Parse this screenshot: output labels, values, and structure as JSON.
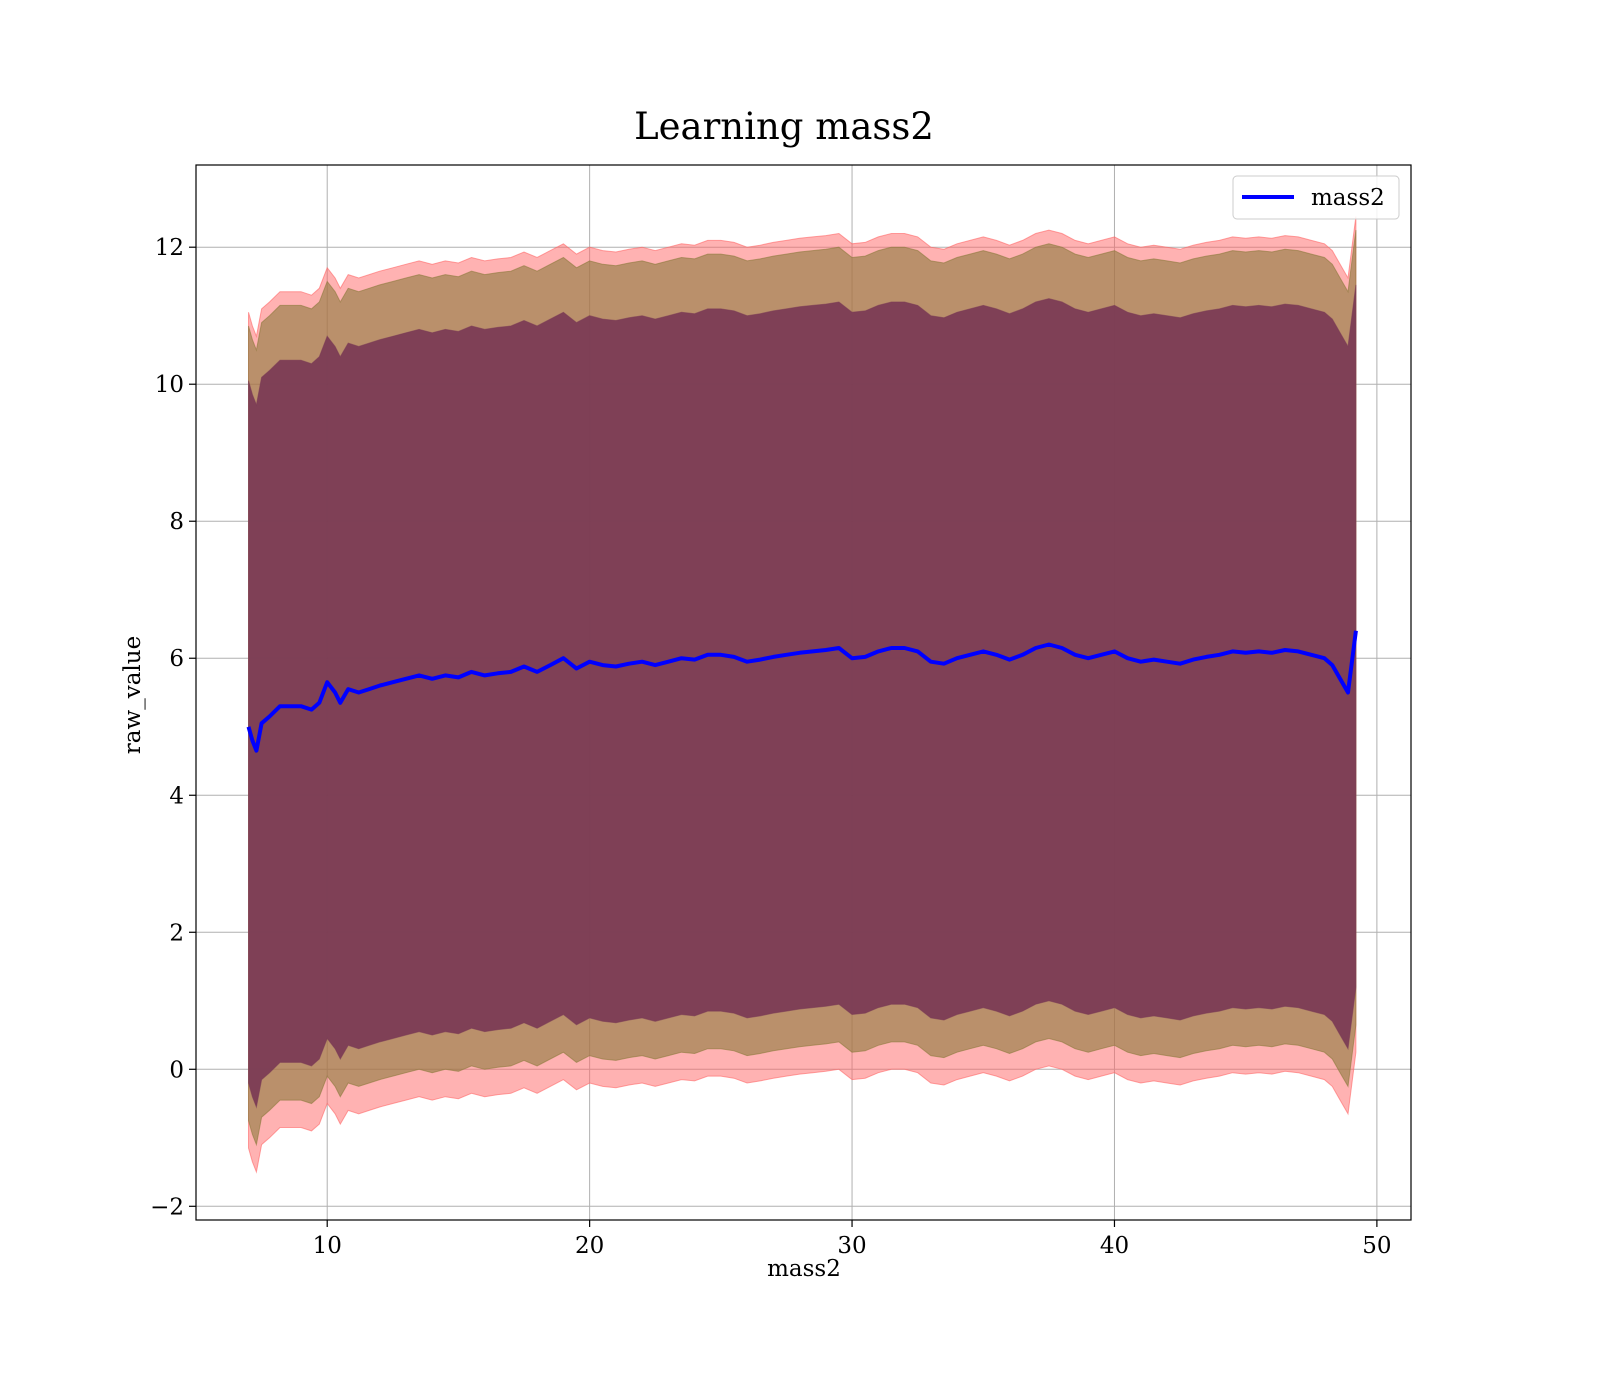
{
  "chart_data": {
    "type": "line",
    "title": "Learning mass2",
    "xlabel": "mass2",
    "ylabel": "raw_value",
    "xlim": [
      5,
      51.3
    ],
    "ylim": [
      -2.2,
      13.2
    ],
    "xticks": [
      10,
      20,
      30,
      40,
      50
    ],
    "yticks": [
      -2,
      0,
      2,
      4,
      6,
      8,
      10,
      12
    ],
    "xtick_labels": [
      "10",
      "20",
      "30",
      "40",
      "50"
    ],
    "ytick_labels": [
      "−2",
      "0",
      "2",
      "4",
      "6",
      "8",
      "10",
      "12"
    ],
    "grid": true,
    "legend": {
      "position": "top-right",
      "entries": [
        "mass2"
      ]
    },
    "colors": {
      "line": "#0000ff",
      "band_outer": "#ff6666",
      "band_middle": "#8c7a3c",
      "band_inner": "#7a3a55",
      "grid": "#b0b0b0"
    },
    "series": [
      {
        "name": "mass2",
        "x": [
          7.0,
          7.15,
          7.3,
          7.5,
          7.8,
          8.2,
          8.6,
          9.0,
          9.4,
          9.7,
          10.0,
          10.3,
          10.5,
          10.8,
          11.2,
          11.6,
          12.0,
          12.5,
          13.0,
          13.5,
          14.0,
          14.5,
          15.0,
          15.5,
          16.0,
          16.5,
          17.0,
          17.5,
          18.0,
          18.5,
          19.0,
          19.5,
          20.0,
          20.5,
          21.0,
          21.5,
          22.0,
          22.5,
          23.0,
          23.5,
          24.0,
          24.5,
          25.0,
          25.5,
          26.0,
          26.5,
          27.0,
          27.5,
          28.0,
          28.5,
          29.0,
          29.5,
          30.0,
          30.5,
          31.0,
          31.5,
          32.0,
          32.5,
          33.0,
          33.5,
          34.0,
          34.5,
          35.0,
          35.5,
          36.0,
          36.5,
          37.0,
          37.5,
          38.0,
          38.5,
          39.0,
          39.5,
          40.0,
          40.5,
          41.0,
          41.5,
          42.0,
          42.5,
          43.0,
          43.5,
          44.0,
          44.5,
          45.0,
          45.5,
          46.0,
          46.5,
          47.0,
          47.5,
          48.0,
          48.3,
          48.6,
          48.9,
          49.2
        ],
        "y": [
          5.0,
          4.8,
          4.65,
          5.05,
          5.15,
          5.3,
          5.3,
          5.3,
          5.25,
          5.35,
          5.65,
          5.5,
          5.35,
          5.55,
          5.5,
          5.55,
          5.6,
          5.65,
          5.7,
          5.75,
          5.7,
          5.75,
          5.72,
          5.8,
          5.75,
          5.78,
          5.8,
          5.88,
          5.8,
          5.9,
          6.0,
          5.85,
          5.95,
          5.9,
          5.88,
          5.92,
          5.95,
          5.9,
          5.95,
          6.0,
          5.98,
          6.05,
          6.05,
          6.02,
          5.95,
          5.98,
          6.02,
          6.05,
          6.08,
          6.1,
          6.12,
          6.15,
          6.0,
          6.02,
          6.1,
          6.15,
          6.15,
          6.1,
          5.95,
          5.92,
          6.0,
          6.05,
          6.1,
          6.05,
          5.98,
          6.05,
          6.15,
          6.2,
          6.15,
          6.05,
          6.0,
          6.05,
          6.1,
          6.0,
          5.95,
          5.98,
          5.95,
          5.92,
          5.98,
          6.02,
          6.05,
          6.1,
          6.08,
          6.1,
          6.08,
          6.12,
          6.1,
          6.05,
          6.0,
          5.9,
          5.7,
          5.5,
          6.4
        ]
      }
    ],
    "bands": [
      {
        "name": "outer",
        "offset_upper": 6.05,
        "offset_lower": 6.15
      },
      {
        "name": "middle",
        "offset_upper": 5.85,
        "offset_lower": 5.75
      },
      {
        "name": "inner",
        "offset_upper": 5.05,
        "offset_lower": 5.2
      }
    ]
  }
}
